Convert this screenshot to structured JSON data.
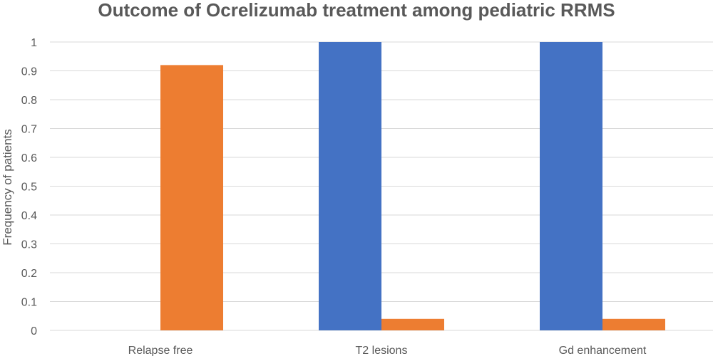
{
  "chart_data": {
    "type": "bar",
    "title": "Outcome of Ocrelizumab treatment among pediatric RRMS",
    "ylabel": "Frequency of patients",
    "xlabel": "",
    "categories": [
      "Relapse free",
      "T2 lesions",
      "Gd enhancement"
    ],
    "series": [
      {
        "color": "#4472C4",
        "values": [
          0,
          1,
          1
        ]
      },
      {
        "color": "#ED7D31",
        "values": [
          0.92,
          0.04,
          0.04
        ]
      }
    ],
    "ylim": [
      0,
      1
    ],
    "yticks": [
      "0",
      "0.1",
      "0.2",
      "0.3",
      "0.4",
      "0.5",
      "0.6",
      "0.7",
      "0.8",
      "0.9",
      "1"
    ],
    "grid": true,
    "legend": "none"
  }
}
